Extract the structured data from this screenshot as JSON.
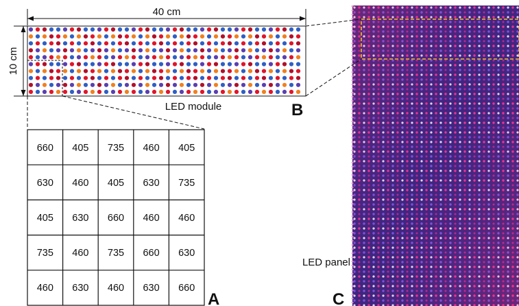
{
  "module": {
    "width_label": "40 cm",
    "height_label": "10 cm",
    "caption": "LED module",
    "rows": 10,
    "cols": 40
  },
  "grid": {
    "rows": [
      [
        660,
        405,
        735,
        460,
        405
      ],
      [
        630,
        460,
        405,
        630,
        735
      ],
      [
        405,
        630,
        660,
        460,
        460
      ],
      [
        735,
        460,
        735,
        660,
        630
      ],
      [
        460,
        630,
        460,
        630,
        660
      ]
    ]
  },
  "panel": {
    "caption": "LED panel"
  },
  "panel_letters": {
    "a": "A",
    "b": "B",
    "c": "C"
  },
  "wavelength_colors": {
    "405": "#5a3fb0",
    "460": "#2f5fc4",
    "630": "#e0152a",
    "660": "#b0102a",
    "735": "#f08020"
  }
}
